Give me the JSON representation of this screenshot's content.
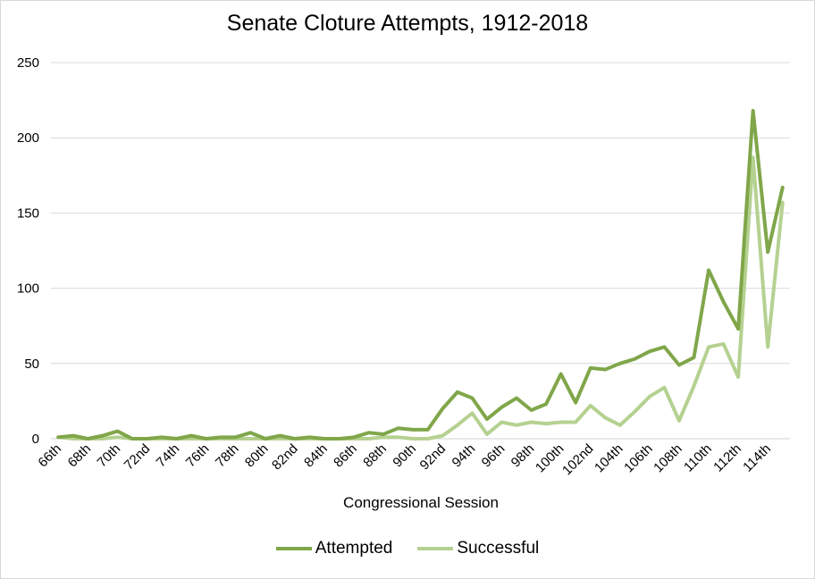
{
  "chart_data": {
    "type": "line",
    "title": "Senate Cloture Attempts, 1912-2018",
    "xlabel": "Congressional Session",
    "ylabel": "",
    "ylim": [
      0,
      250
    ],
    "yticks": [
      0,
      50,
      100,
      150,
      200,
      250
    ],
    "grid": true,
    "legend_position": "bottom",
    "categories": [
      "66th",
      "67th",
      "68th",
      "69th",
      "70th",
      "71st",
      "72nd",
      "73rd",
      "74th",
      "75th",
      "76th",
      "77th",
      "78th",
      "79th",
      "80th",
      "81st",
      "82nd",
      "83rd",
      "84th",
      "85th",
      "86th",
      "87th",
      "88th",
      "89th",
      "90th",
      "91st",
      "92nd",
      "93rd",
      "94th",
      "95th",
      "96th",
      "97th",
      "98th",
      "99th",
      "100th",
      "101st",
      "102nd",
      "103rd",
      "104th",
      "105th",
      "106th",
      "107th",
      "108th",
      "109th",
      "110th",
      "111th",
      "112th",
      "113th",
      "114th",
      "115th"
    ],
    "tick_labels": [
      "66th",
      "68th",
      "70th",
      "72nd",
      "74th",
      "76th",
      "78th",
      "80th",
      "82nd",
      "84th",
      "86th",
      "88th",
      "90th",
      "92nd",
      "94th",
      "96th",
      "98th",
      "100th",
      "102nd",
      "104th",
      "106th",
      "108th",
      "110th",
      "112th",
      "114th"
    ],
    "series": [
      {
        "name": "Attempted",
        "color": "#80a64a",
        "values": [
          1,
          2,
          0,
          2,
          5,
          0,
          0,
          1,
          0,
          2,
          0,
          1,
          1,
          4,
          0,
          2,
          0,
          1,
          0,
          0,
          1,
          4,
          3,
          7,
          6,
          6,
          20,
          31,
          27,
          13,
          21,
          27,
          19,
          23,
          43,
          24,
          47,
          46,
          50,
          53,
          58,
          61,
          49,
          54,
          112,
          91,
          73,
          218,
          124,
          167
        ]
      },
      {
        "name": "Successful",
        "color": "#b5d190",
        "values": [
          1,
          0,
          0,
          0,
          1,
          0,
          0,
          0,
          0,
          0,
          0,
          0,
          0,
          0,
          0,
          0,
          0,
          0,
          0,
          0,
          0,
          0,
          1,
          1,
          0,
          0,
          2,
          9,
          17,
          3,
          11,
          9,
          11,
          10,
          11,
          11,
          22,
          14,
          9,
          18,
          28,
          34,
          12,
          35,
          61,
          63,
          41,
          187,
          61,
          157
        ]
      }
    ]
  }
}
